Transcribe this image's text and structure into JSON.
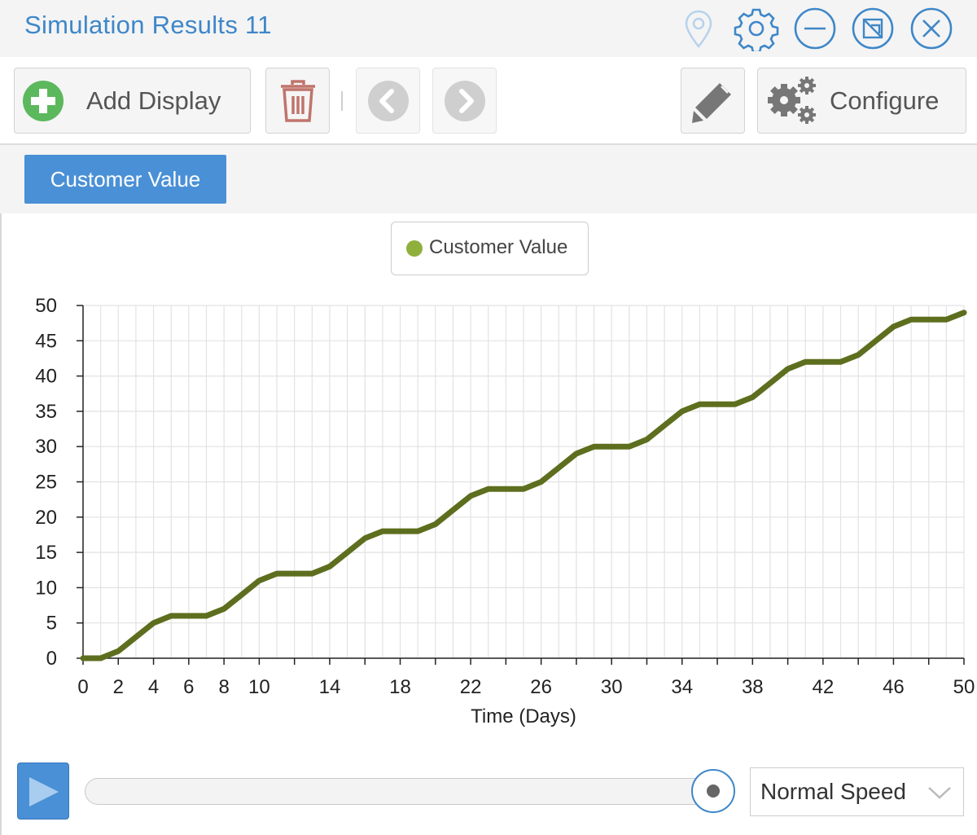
{
  "window": {
    "title": "Simulation Results 11",
    "icons": [
      "pin-icon",
      "gear-icon",
      "minimize-icon",
      "popout-icon",
      "close-icon"
    ]
  },
  "toolbar": {
    "add_display_label": "Add Display",
    "configure_label": "Configure"
  },
  "tabs": [
    {
      "label": "Customer Value",
      "active": true
    }
  ],
  "controls": {
    "speed": "Normal Speed",
    "progress": 1.0
  },
  "colors": {
    "accent": "#4a90d6",
    "title": "#3e87c8",
    "series_line": "#5d6e1e",
    "legend_dot": "#8fb03c"
  },
  "chart_data": {
    "type": "line",
    "xlabel": "Time (Days)",
    "ylabel": "",
    "xlim": [
      0,
      50
    ],
    "ylim": [
      0,
      50
    ],
    "x_ticks": [
      0,
      2,
      4,
      6,
      8,
      10,
      14,
      18,
      22,
      26,
      30,
      34,
      38,
      42,
      46,
      50
    ],
    "y_ticks": [
      0,
      5,
      10,
      15,
      20,
      25,
      30,
      35,
      40,
      45,
      50
    ],
    "grid": true,
    "legend_position": "top-center",
    "series": [
      {
        "name": "Customer Value",
        "x": [
          0,
          1,
          2,
          3,
          4,
          5,
          6,
          7,
          8,
          9,
          10,
          11,
          12,
          13,
          14,
          15,
          16,
          17,
          18,
          19,
          20,
          21,
          22,
          23,
          24,
          25,
          26,
          27,
          28,
          29,
          30,
          31,
          32,
          33,
          34,
          35,
          36,
          37,
          38,
          39,
          40,
          41,
          42,
          43,
          44,
          45,
          46,
          47,
          48,
          49,
          50
        ],
        "values": [
          0,
          0,
          1,
          3,
          5,
          6,
          6,
          6,
          7,
          9,
          11,
          12,
          12,
          12,
          13,
          15,
          17,
          18,
          18,
          18,
          19,
          21,
          23,
          24,
          24,
          24,
          25,
          27,
          29,
          30,
          30,
          30,
          31,
          33,
          35,
          36,
          36,
          36,
          37,
          39,
          41,
          42,
          42,
          42,
          43,
          45,
          47,
          48,
          48,
          48,
          49
        ]
      }
    ]
  }
}
